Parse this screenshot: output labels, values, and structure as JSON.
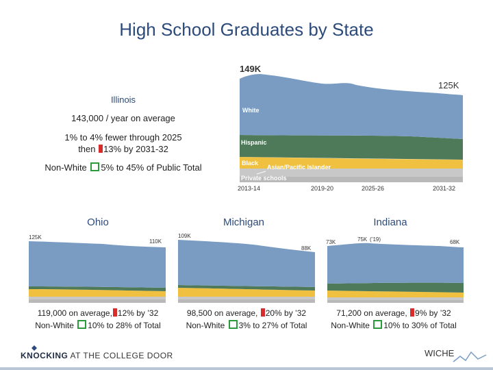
{
  "page": {
    "title": "High School Graduates by State"
  },
  "illinois": {
    "name": "Illinois",
    "avg": "143,000 / year on average",
    "trend1": "1% to 4% fewer through 2025",
    "trend2_pre": "then",
    "trend2_post": "13% by 2031-32",
    "nonwhite_pre": "Non-White",
    "nonwhite_post": "5% to 45% of Public Total",
    "peak_label": "149K",
    "end_label": "125K",
    "band_labels": {
      "white": "White",
      "hispanic": "Hispanic",
      "black": "Black",
      "asian": "Asian/Pacific Islander",
      "private": "Private schools"
    },
    "x_ticks": [
      "2013-14",
      "2019-20",
      "2025-26",
      "2031-32"
    ]
  },
  "ohio": {
    "name": "Ohio",
    "start_label": "125K",
    "end_label": "110K",
    "line1_pre": "119,000 on average,",
    "line1_post": "12% by ’32",
    "line2_pre": "Non-White",
    "line2_post": "10% to 28% of Total"
  },
  "michigan": {
    "name": "Michigan",
    "start_label": "109K",
    "end_label": "88K",
    "line1_pre": "98,500 on average,",
    "line1_post": "20% by ’32",
    "line2_pre": "Non-White",
    "line2_post": "3% to 27% of Total"
  },
  "indiana": {
    "name": "Indiana",
    "start_label": "73K",
    "peak_label": "75K",
    "peak_year": "(’19)",
    "end_label": "68K",
    "line1_pre": "71,200 on average,",
    "line1_post": "9% by ’32",
    "line2_pre": "Non-White",
    "line2_post": "10% to 30% of Total"
  },
  "footer": {
    "left_bold": "KNOCKING",
    "left_rest": " AT THE COLLEGE DOOR",
    "right": "WICHE"
  },
  "colors": {
    "white": "#7a9cc2",
    "hispanic": "#4f7a5a",
    "black": "#f0c040",
    "asian": "#c8c8c8",
    "private": "#b9b9b9",
    "marker_red": "#d62c2c",
    "marker_green": "#2e9a3e",
    "title": "#2c4a7a"
  }
}
